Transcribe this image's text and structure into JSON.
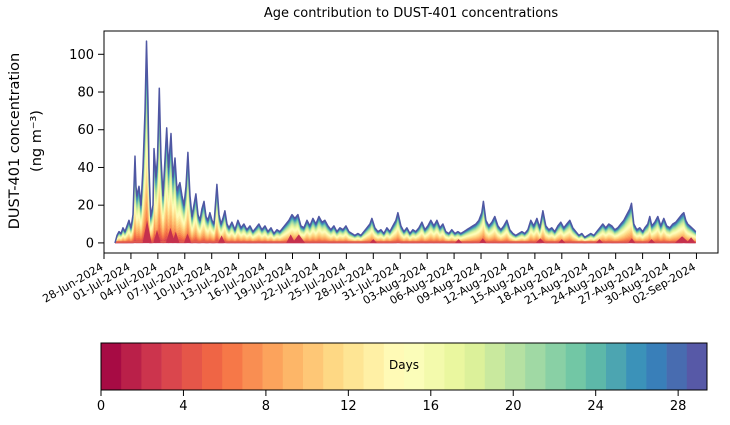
{
  "title": "Age contribution to DUST-401 concentrations",
  "y_axis": {
    "label_line1": "DUST-401 concentration",
    "label_line2": "(ng m⁻³)",
    "ticks": [
      0,
      20,
      40,
      60,
      80,
      100
    ],
    "range": [
      -5.35,
      112.35
    ]
  },
  "x_axis": {
    "tick_labels": [
      "28-Jun-2024",
      "01-Jul-2024",
      "04-Jul-2024",
      "07-Jul-2024",
      "10-Jul-2024",
      "13-Jul-2024",
      "16-Jul-2024",
      "19-Jul-2024",
      "22-Jul-2024",
      "25-Jul-2024",
      "28-Jul-2024",
      "31-Jul-2024",
      "03-Aug-2024",
      "06-Aug-2024",
      "09-Aug-2024",
      "12-Aug-2024",
      "15-Aug-2024",
      "18-Aug-2024",
      "21-Aug-2024",
      "24-Aug-2024",
      "27-Aug-2024",
      "30-Aug-2024",
      "02-Sep-2024"
    ],
    "tick_interval_days": 3,
    "range_days": [
      0,
      68.4
    ]
  },
  "chart_data": {
    "type": "stacked-area",
    "x_unit": "days since 28-Jun-2024 00:00",
    "ages_days": 30,
    "outline_color": "#4f57a3",
    "baseline_strip_color": "#e2604e",
    "fresh_spike_color": "#c5304d",
    "age_weights": [
      1,
      3.4,
      6.5,
      9.7,
      12.8,
      15.6,
      18,
      19.9,
      21.3,
      22.3,
      22.8,
      23,
      22.9,
      22.5,
      21.8,
      21,
      20.1,
      19.1,
      18,
      17,
      16,
      15.2,
      14.5,
      14,
      13.6,
      13.3,
      13.2,
      13.4,
      14,
      15.5
    ],
    "envelope": [
      [
        1.22,
        0
      ],
      [
        1.45,
        4
      ],
      [
        1.67,
        6
      ],
      [
        1.89,
        5
      ],
      [
        2.12,
        8
      ],
      [
        2.34,
        6
      ],
      [
        2.56,
        9
      ],
      [
        2.78,
        12
      ],
      [
        3.01,
        8
      ],
      [
        3.23,
        15
      ],
      [
        3.45,
        46
      ],
      [
        3.56,
        30
      ],
      [
        3.67,
        25
      ],
      [
        3.9,
        30
      ],
      [
        4.12,
        20
      ],
      [
        4.34,
        40
      ],
      [
        4.57,
        70
      ],
      [
        4.73,
        107
      ],
      [
        4.9,
        75
      ],
      [
        5.01,
        40
      ],
      [
        5.2,
        14
      ],
      [
        5.46,
        20
      ],
      [
        5.57,
        50
      ],
      [
        5.79,
        35
      ],
      [
        5.96,
        45
      ],
      [
        6.16,
        82
      ],
      [
        6.35,
        45
      ],
      [
        6.57,
        25
      ],
      [
        6.98,
        61
      ],
      [
        7.18,
        40
      ],
      [
        7.46,
        58
      ],
      [
        7.68,
        35
      ],
      [
        7.91,
        45
      ],
      [
        8.13,
        28
      ],
      [
        8.46,
        32
      ],
      [
        8.69,
        25
      ],
      [
        8.91,
        20
      ],
      [
        9.13,
        30
      ],
      [
        9.35,
        48
      ],
      [
        9.58,
        25
      ],
      [
        9.8,
        14
      ],
      [
        10.02,
        20
      ],
      [
        10.24,
        26
      ],
      [
        10.47,
        15
      ],
      [
        10.69,
        12
      ],
      [
        10.91,
        18
      ],
      [
        11.14,
        22
      ],
      [
        11.36,
        14
      ],
      [
        11.58,
        12
      ],
      [
        11.8,
        16
      ],
      [
        12.03,
        12
      ],
      [
        12.25,
        10
      ],
      [
        12.58,
        31
      ],
      [
        12.81,
        15
      ],
      [
        13.03,
        10
      ],
      [
        13.25,
        13
      ],
      [
        13.47,
        17
      ],
      [
        13.7,
        10
      ],
      [
        13.92,
        8
      ],
      [
        14.25,
        11
      ],
      [
        14.59,
        7
      ],
      [
        14.92,
        12
      ],
      [
        15.26,
        8
      ],
      [
        15.59,
        10
      ],
      [
        15.92,
        7
      ],
      [
        16.26,
        9
      ],
      [
        16.59,
        6
      ],
      [
        16.93,
        8
      ],
      [
        17.26,
        10
      ],
      [
        17.59,
        7
      ],
      [
        17.93,
        9
      ],
      [
        18.26,
        6
      ],
      [
        18.6,
        8
      ],
      [
        18.93,
        5
      ],
      [
        19.27,
        7
      ],
      [
        19.6,
        6
      ],
      [
        19.93,
        8
      ],
      [
        20.27,
        10
      ],
      [
        20.6,
        12
      ],
      [
        20.94,
        15
      ],
      [
        21.27,
        13
      ],
      [
        21.6,
        15
      ],
      [
        21.94,
        9
      ],
      [
        22.27,
        8
      ],
      [
        22.61,
        12
      ],
      [
        22.94,
        9
      ],
      [
        23.27,
        13
      ],
      [
        23.61,
        10
      ],
      [
        23.94,
        14
      ],
      [
        24.28,
        11
      ],
      [
        24.61,
        12
      ],
      [
        24.94,
        9
      ],
      [
        25.28,
        7
      ],
      [
        25.61,
        9
      ],
      [
        25.95,
        6
      ],
      [
        26.28,
        8
      ],
      [
        26.62,
        7
      ],
      [
        26.95,
        9
      ],
      [
        27.28,
        6
      ],
      [
        27.62,
        5
      ],
      [
        27.95,
        4
      ],
      [
        28.29,
        5
      ],
      [
        28.62,
        4
      ],
      [
        28.95,
        6
      ],
      [
        29.29,
        8
      ],
      [
        29.62,
        10
      ],
      [
        29.84,
        13
      ],
      [
        30.18,
        8
      ],
      [
        30.51,
        6
      ],
      [
        30.85,
        7
      ],
      [
        31.18,
        5
      ],
      [
        31.51,
        8
      ],
      [
        31.85,
        6
      ],
      [
        32.18,
        9
      ],
      [
        32.52,
        12
      ],
      [
        32.74,
        16
      ],
      [
        33.07,
        9
      ],
      [
        33.41,
        6
      ],
      [
        33.74,
        8
      ],
      [
        34.08,
        5
      ],
      [
        34.41,
        7
      ],
      [
        34.74,
        6
      ],
      [
        35.08,
        8
      ],
      [
        35.41,
        11
      ],
      [
        35.75,
        7
      ],
      [
        36.08,
        9
      ],
      [
        36.41,
        12
      ],
      [
        36.75,
        9
      ],
      [
        37.08,
        12
      ],
      [
        37.42,
        8
      ],
      [
        37.75,
        10
      ],
      [
        38.08,
        6
      ],
      [
        38.42,
        5
      ],
      [
        38.75,
        7
      ],
      [
        39.09,
        5
      ],
      [
        39.42,
        6
      ],
      [
        39.75,
        5
      ],
      [
        40.09,
        6
      ],
      [
        40.42,
        7
      ],
      [
        40.76,
        8
      ],
      [
        41.09,
        9
      ],
      [
        41.43,
        10
      ],
      [
        41.76,
        12
      ],
      [
        42.09,
        16
      ],
      [
        42.26,
        22
      ],
      [
        42.54,
        12
      ],
      [
        42.87,
        9
      ],
      [
        43.21,
        11
      ],
      [
        43.54,
        14
      ],
      [
        43.88,
        9
      ],
      [
        44.21,
        7
      ],
      [
        44.54,
        9
      ],
      [
        44.88,
        12
      ],
      [
        45.21,
        7
      ],
      [
        45.55,
        5
      ],
      [
        45.88,
        4
      ],
      [
        46.21,
        5
      ],
      [
        46.55,
        6
      ],
      [
        46.88,
        5
      ],
      [
        47.22,
        7
      ],
      [
        47.55,
        12
      ],
      [
        47.88,
        9
      ],
      [
        48.22,
        13
      ],
      [
        48.55,
        8
      ],
      [
        48.89,
        17
      ],
      [
        49.22,
        9
      ],
      [
        49.55,
        7
      ],
      [
        49.89,
        8
      ],
      [
        50.22,
        6
      ],
      [
        50.56,
        9
      ],
      [
        50.89,
        11
      ],
      [
        51.22,
        8
      ],
      [
        51.56,
        10
      ],
      [
        51.89,
        12
      ],
      [
        52.23,
        8
      ],
      [
        52.56,
        6
      ],
      [
        52.9,
        4
      ],
      [
        53.23,
        5
      ],
      [
        53.56,
        3
      ],
      [
        53.9,
        4
      ],
      [
        54.23,
        5
      ],
      [
        54.57,
        4
      ],
      [
        54.9,
        6
      ],
      [
        55.23,
        8
      ],
      [
        55.57,
        10
      ],
      [
        55.9,
        8
      ],
      [
        56.24,
        10
      ],
      [
        56.57,
        9
      ],
      [
        56.9,
        7
      ],
      [
        57.24,
        8
      ],
      [
        57.57,
        10
      ],
      [
        57.91,
        12
      ],
      [
        58.24,
        15
      ],
      [
        58.57,
        18
      ],
      [
        58.76,
        21
      ],
      [
        59.02,
        10
      ],
      [
        59.35,
        7
      ],
      [
        59.69,
        8
      ],
      [
        60.02,
        6
      ],
      [
        60.24,
        8
      ],
      [
        60.58,
        10
      ],
      [
        60.8,
        14
      ],
      [
        61.02,
        9
      ],
      [
        61.36,
        11
      ],
      [
        61.69,
        14
      ],
      [
        62.03,
        9
      ],
      [
        62.36,
        13
      ],
      [
        62.69,
        9
      ],
      [
        63.03,
        8
      ],
      [
        63.36,
        10
      ],
      [
        63.7,
        11
      ],
      [
        64.03,
        13
      ],
      [
        64.37,
        15
      ],
      [
        64.59,
        16
      ],
      [
        64.81,
        12
      ],
      [
        65.03,
        10
      ],
      [
        65.26,
        9
      ],
      [
        65.48,
        8
      ],
      [
        65.7,
        7
      ],
      [
        65.92,
        6
      ]
    ],
    "fresh_spikes": [
      [
        4.8,
        12,
        0.5
      ],
      [
        5.9,
        7,
        0.4
      ],
      [
        7.4,
        8,
        0.5
      ],
      [
        8.0,
        6,
        0.4
      ],
      [
        9.3,
        5,
        0.4
      ],
      [
        13.1,
        4,
        0.4
      ],
      [
        20.8,
        4.5,
        0.5
      ],
      [
        21.7,
        4.5,
        0.7
      ],
      [
        30.0,
        2,
        0.4
      ],
      [
        39.5,
        2,
        0.4
      ],
      [
        42.2,
        2.5,
        0.4
      ],
      [
        48.6,
        2.5,
        0.5
      ],
      [
        51.0,
        2,
        0.4
      ],
      [
        55.2,
        2,
        0.4
      ],
      [
        58.8,
        2.5,
        0.4
      ],
      [
        61.0,
        2,
        0.4
      ],
      [
        64.4,
        3.5,
        0.8
      ],
      [
        65.4,
        3,
        0.5
      ]
    ]
  },
  "colorbar": {
    "label": "Days",
    "ticks": [
      0,
      4,
      8,
      12,
      16,
      20,
      24,
      28
    ],
    "range": [
      0,
      29.4
    ],
    "n_steps": 30,
    "colors": [
      "#a70b44",
      "#ba2049",
      "#cc344d",
      "#da464d",
      "#e55649",
      "#ef6545",
      "#f67848",
      "#f98e52",
      "#fca35c",
      "#fdb668",
      "#fec776",
      "#fed884",
      "#fee594",
      "#fff0a5",
      "#fffab6",
      "#fbfdb9",
      "#f3faac",
      "#eaf79f",
      "#dcf19a",
      "#c9e99e",
      "#b5e1a2",
      "#a0d9a4",
      "#89d0a5",
      "#72c7a5",
      "#5db8a9",
      "#4ca5b1",
      "#3b92b9",
      "#397fb9",
      "#486cb0",
      "#5759a7"
    ]
  }
}
